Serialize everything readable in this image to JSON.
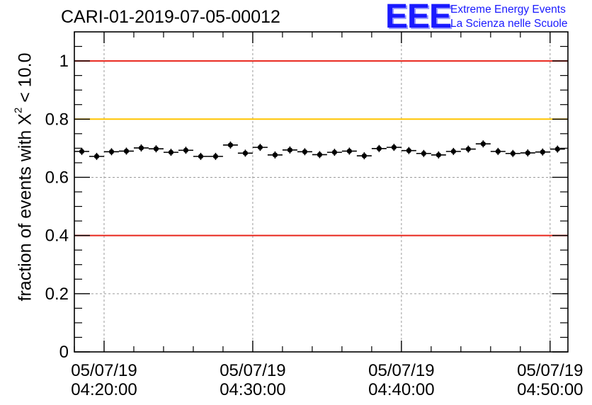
{
  "chart_data": {
    "type": "scatter",
    "title": "CARI-01-2019-07-05-00012",
    "ylabel_prefix": "fraction of events with",
    "ylabel_symbol": "X",
    "ylabel_exponent": "2",
    "ylabel_suffix": "< 10.0",
    "xlabel": "",
    "ylim": [
      0,
      1.1
    ],
    "yticks": [
      {
        "value": 0,
        "label": "0"
      },
      {
        "value": 0.2,
        "label": "0.2"
      },
      {
        "value": 0.4,
        "label": "0.4"
      },
      {
        "value": 0.6,
        "label": "0.6"
      },
      {
        "value": 0.8,
        "label": "0.8"
      },
      {
        "value": 1,
        "label": "1"
      }
    ],
    "xlim_minutes": [
      18,
      51.2
    ],
    "xticks": [
      {
        "minute": 20,
        "date": "05/07/19",
        "time": "04:20:00"
      },
      {
        "minute": 30,
        "date": "05/07/19",
        "time": "04:30:00"
      },
      {
        "minute": 40,
        "date": "05/07/19",
        "time": "04:40:00"
      },
      {
        "minute": 50,
        "date": "05/07/19",
        "time": "04:50:00"
      }
    ],
    "grid": true,
    "reference_lines": [
      {
        "value": 1.0,
        "color": "#e8261c"
      },
      {
        "value": 0.8,
        "color": "#ffc400"
      },
      {
        "value": 0.4,
        "color": "#e8261c"
      }
    ],
    "bin_width_minutes": 1,
    "series": [
      {
        "name": "fraction",
        "x_minutes": [
          18.5,
          19.5,
          20.5,
          21.5,
          22.5,
          23.5,
          24.5,
          25.5,
          26.5,
          27.5,
          28.5,
          29.5,
          30.5,
          31.5,
          32.5,
          33.5,
          34.5,
          35.5,
          36.5,
          37.5,
          38.5,
          39.5,
          40.5,
          41.5,
          42.5,
          43.5,
          44.5,
          45.5,
          46.5,
          47.5,
          48.5,
          49.5,
          50.5
        ],
        "values": [
          0.689,
          0.672,
          0.688,
          0.69,
          0.701,
          0.698,
          0.686,
          0.693,
          0.672,
          0.672,
          0.711,
          0.683,
          0.703,
          0.677,
          0.694,
          0.688,
          0.678,
          0.686,
          0.69,
          0.674,
          0.699,
          0.703,
          0.692,
          0.682,
          0.677,
          0.689,
          0.697,
          0.715,
          0.689,
          0.682,
          0.684,
          0.687,
          0.697
        ]
      }
    ]
  },
  "logo": {
    "mark": "EEE",
    "line1": "Extreme Energy Events",
    "line2": "La Scienza nelle Scuole",
    "color": "#1a1aff"
  }
}
